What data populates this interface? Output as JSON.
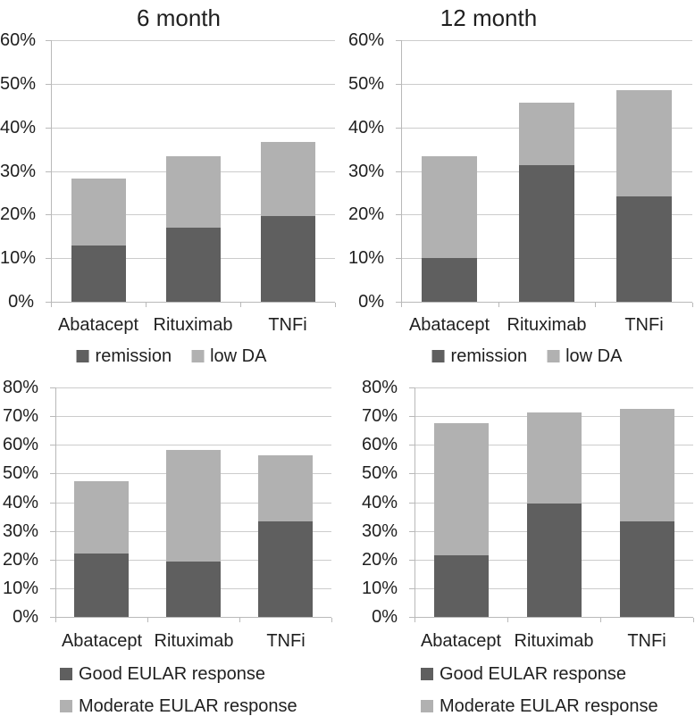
{
  "colors": {
    "series_dark": "#5f5f5f",
    "series_light": "#b1b1b1",
    "gridline": "#cccccc",
    "axis": "#b9b9b9",
    "text": "#1f1f1f",
    "background": "#ffffff"
  },
  "chart_data": [
    {
      "type": "bar",
      "stacked": true,
      "title": "6 month",
      "categories": [
        "Abatacept",
        "Rituximab",
        "TNFi"
      ],
      "series": [
        {
          "name": "remission",
          "color": "#5f5f5f",
          "values": [
            12.9,
            16.9,
            19.6
          ]
        },
        {
          "name": "low DA",
          "color": "#b1b1b1",
          "values": [
            15.3,
            16.5,
            17.0
          ]
        }
      ],
      "stack_totals": [
        28.2,
        33.4,
        36.6
      ],
      "ylim": [
        0,
        60
      ],
      "ytick_labels": [
        "0%",
        "10%",
        "20%",
        "30%",
        "40%",
        "50%",
        "60%"
      ],
      "grid": true,
      "legend_position": "bottom-center"
    },
    {
      "type": "bar",
      "stacked": true,
      "title": "12 month",
      "categories": [
        "Abatacept",
        "Rituximab",
        "TNFi"
      ],
      "series": [
        {
          "name": "remission",
          "color": "#5f5f5f",
          "values": [
            10.0,
            31.4,
            24.2
          ]
        },
        {
          "name": "low DA",
          "color": "#b1b1b1",
          "values": [
            23.3,
            14.3,
            24.4
          ]
        }
      ],
      "stack_totals": [
        33.3,
        45.7,
        48.6
      ],
      "ylim": [
        0,
        60
      ],
      "ytick_labels": [
        "0%",
        "10%",
        "20%",
        "30%",
        "40%",
        "50%",
        "60%"
      ],
      "grid": true,
      "legend_position": "bottom-center"
    },
    {
      "type": "bar",
      "stacked": true,
      "title": "",
      "categories": [
        "Abatacept",
        "Rituximab",
        "TNFi"
      ],
      "series": [
        {
          "name": "Good EULAR response",
          "color": "#5f5f5f",
          "values": [
            22.2,
            19.4,
            33.3
          ]
        },
        {
          "name": "Moderate EULAR response",
          "color": "#b1b1b1",
          "values": [
            25.0,
            38.9,
            23.0
          ]
        }
      ],
      "stack_totals": [
        47.2,
        58.3,
        56.3
      ],
      "ylim": [
        0,
        80
      ],
      "ytick_labels": [
        "0%",
        "10%",
        "20%",
        "30%",
        "40%",
        "50%",
        "60%",
        "70%",
        "80%"
      ],
      "grid": true,
      "legend_position": "bottom-left"
    },
    {
      "type": "bar",
      "stacked": true,
      "title": "",
      "categories": [
        "Abatacept",
        "Rituximab",
        "TNFi"
      ],
      "series": [
        {
          "name": "Good EULAR response",
          "color": "#5f5f5f",
          "values": [
            21.4,
            39.4,
            33.3
          ]
        },
        {
          "name": "Moderate EULAR response",
          "color": "#b1b1b1",
          "values": [
            46.3,
            31.9,
            39.2
          ]
        }
      ],
      "stack_totals": [
        67.7,
        71.3,
        72.5
      ],
      "ylim": [
        0,
        80
      ],
      "ytick_labels": [
        "0%",
        "10%",
        "20%",
        "30%",
        "40%",
        "50%",
        "60%",
        "70%",
        "80%"
      ],
      "grid": true,
      "legend_position": "bottom-left"
    }
  ]
}
